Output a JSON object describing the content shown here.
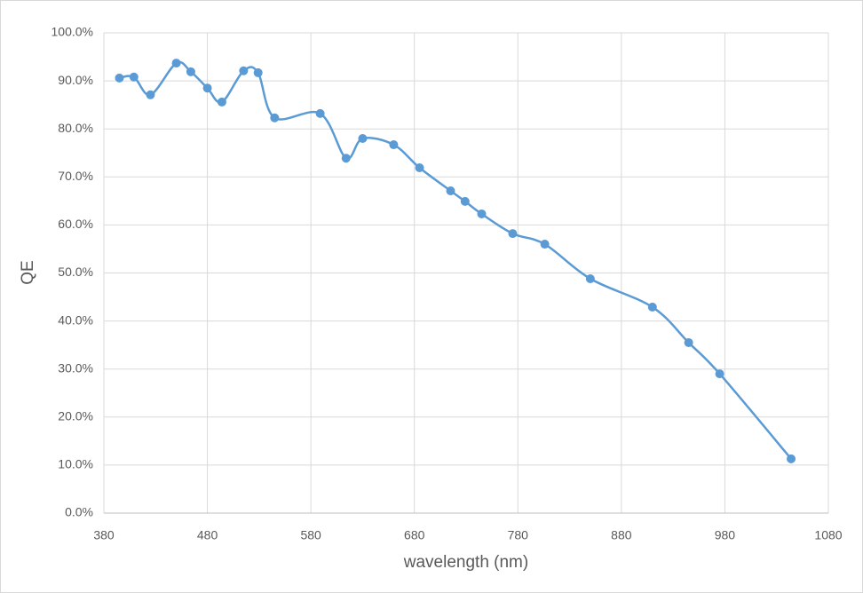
{
  "chart_data": {
    "type": "line",
    "x_label": "wavelength (nm)",
    "y_label": "QE",
    "series": [
      {
        "name": "QE",
        "color": "#5b9bd5",
        "x": [
          395,
          409,
          425,
          450,
          464,
          480,
          494,
          515,
          529,
          545,
          589,
          614,
          630,
          660,
          685,
          715,
          729,
          745,
          775,
          806,
          850,
          910,
          945,
          975,
          1044
        ],
        "values": [
          90.6,
          90.8,
          87.1,
          93.7,
          91.9,
          88.5,
          85.6,
          92.1,
          91.7,
          82.3,
          83.2,
          73.9,
          78.0,
          76.7,
          71.9,
          67.1,
          64.9,
          62.3,
          58.2,
          56.0,
          48.8,
          42.9,
          35.5,
          29.0,
          11.3
        ]
      }
    ],
    "xlim": [
      380,
      1080
    ],
    "xticks": [
      380,
      480,
      580,
      680,
      780,
      880,
      980,
      1080
    ],
    "ylim": [
      0,
      100
    ],
    "yticks": [
      {
        "value": 0,
        "label": "0.0%"
      },
      {
        "value": 10,
        "label": "10.0%"
      },
      {
        "value": 20,
        "label": "20.0%"
      },
      {
        "value": 30,
        "label": "30.0%"
      },
      {
        "value": 40,
        "label": "40.0%"
      },
      {
        "value": 50,
        "label": "50.0%"
      },
      {
        "value": 60,
        "label": "60.0%"
      },
      {
        "value": 70,
        "label": "70.0%"
      },
      {
        "value": 80,
        "label": "80.0%"
      },
      {
        "value": 90,
        "label": "90.0%"
      },
      {
        "value": 100,
        "label": "100.0%"
      }
    ],
    "grid": true,
    "smooth": true
  }
}
